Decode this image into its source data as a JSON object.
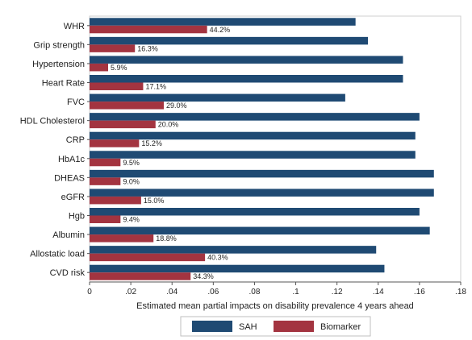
{
  "chart_data": {
    "type": "bar",
    "orientation": "horizontal",
    "categories": [
      "WHR",
      "Grip strength",
      "Hypertension",
      "Heart Rate",
      "FVC",
      "HDL Cholesterol",
      "CRP",
      "HbA1c",
      "DHEAS",
      "eGFR",
      "Hgb",
      "Albumin",
      "Allostatic load",
      "CVD risk"
    ],
    "series": [
      {
        "name": "SAH",
        "color": "#1f4a73",
        "values": [
          0.129,
          0.135,
          0.152,
          0.152,
          0.124,
          0.16,
          0.158,
          0.158,
          0.167,
          0.167,
          0.16,
          0.165,
          0.139,
          0.143
        ]
      },
      {
        "name": "Biomarker",
        "color": "#a33440",
        "values": [
          0.057,
          0.022,
          0.009,
          0.026,
          0.036,
          0.032,
          0.024,
          0.015,
          0.015,
          0.025,
          0.015,
          0.031,
          0.056,
          0.049
        ],
        "data_labels": [
          "44.2%",
          "16.3%",
          "5.9%",
          "17.1%",
          "29.0%",
          "20.0%",
          "15.2%",
          "9.5%",
          "9.0%",
          "15.0%",
          "9.4%",
          "18.8%",
          "40.3%",
          "34.3%"
        ]
      }
    ],
    "xlabel": "Estimated mean partial impacts on disability prevalence 4 years ahead",
    "ylabel": "",
    "xlim": [
      0,
      0.18
    ],
    "xticks": [
      0,
      0.02,
      0.04,
      0.06,
      0.08,
      0.1,
      0.12,
      0.14,
      0.16,
      0.18
    ],
    "xtick_labels": [
      "0",
      ".02",
      ".04",
      ".06",
      ".08",
      ".1",
      ".12",
      ".14",
      ".16",
      ".18"
    ],
    "grid": false,
    "legend": "bottom"
  }
}
